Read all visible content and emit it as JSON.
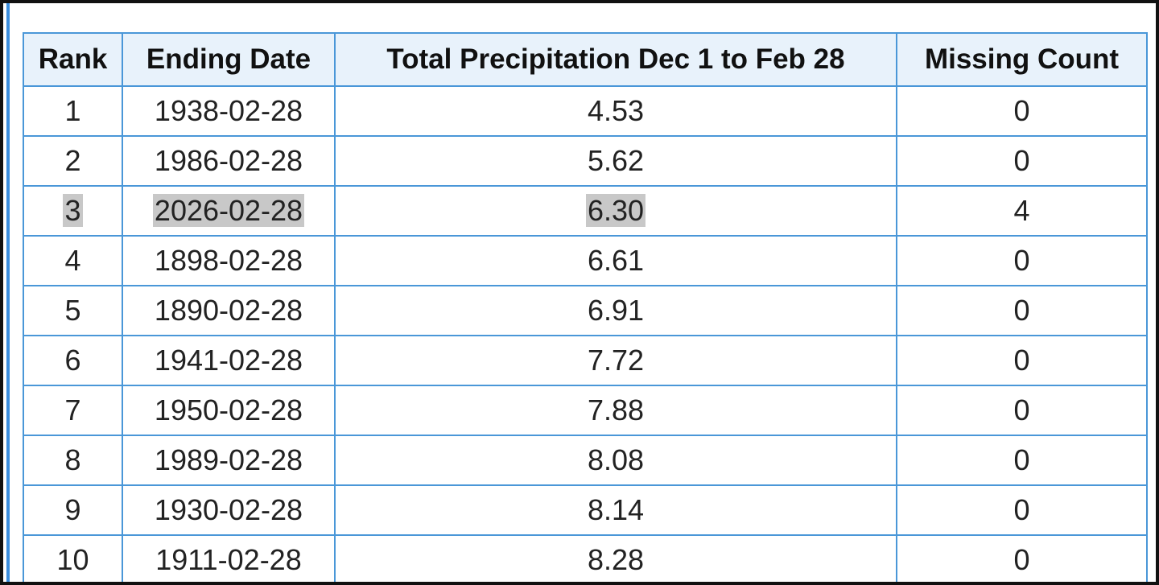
{
  "table": {
    "headers": [
      "Rank",
      "Ending Date",
      "Total Precipitation Dec 1 to Feb 28",
      "Missing Count"
    ],
    "rows": [
      [
        "1",
        "1938-02-28",
        "4.53",
        "0"
      ],
      [
        "2",
        "1986-02-28",
        "5.62",
        "0"
      ],
      [
        "3",
        "2026-02-28",
        "6.30",
        "4"
      ],
      [
        "4",
        "1898-02-28",
        "6.61",
        "0"
      ],
      [
        "5",
        "1890-02-28",
        "6.91",
        "0"
      ],
      [
        "6",
        "1941-02-28",
        "7.72",
        "0"
      ],
      [
        "7",
        "1950-02-28",
        "7.88",
        "0"
      ],
      [
        "8",
        "1989-02-28",
        "8.08",
        "0"
      ],
      [
        "9",
        "1930-02-28",
        "8.14",
        "0"
      ],
      [
        "10",
        "1911-02-28",
        "8.28",
        "0"
      ]
    ]
  }
}
